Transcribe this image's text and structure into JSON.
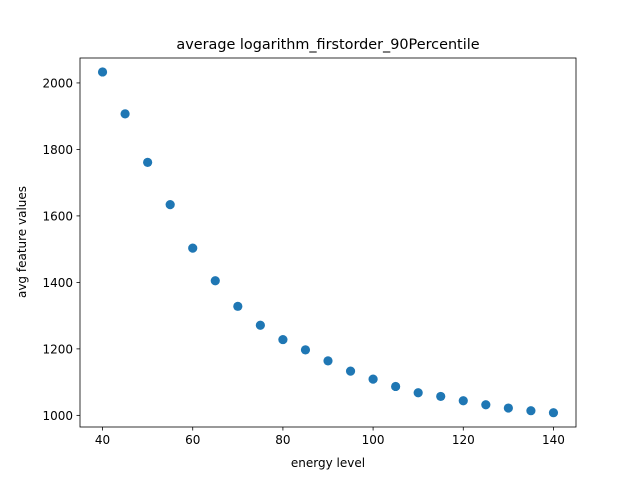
{
  "chart_data": {
    "type": "scatter",
    "title": "average logarithm_firstorder_90Percentile",
    "xlabel": "energy level",
    "ylabel": "avg feature values",
    "xlim": [
      35,
      145
    ],
    "ylim": [
      965,
      2075
    ],
    "xticks": [
      40,
      60,
      80,
      100,
      120,
      140
    ],
    "yticks": [
      1000,
      1200,
      1400,
      1600,
      1800,
      2000
    ],
    "grid": false,
    "marker_color": "#1f77b4",
    "points": [
      {
        "x": 40,
        "y": 2033
      },
      {
        "x": 45,
        "y": 1907
      },
      {
        "x": 50,
        "y": 1761
      },
      {
        "x": 55,
        "y": 1634
      },
      {
        "x": 60,
        "y": 1503
      },
      {
        "x": 65,
        "y": 1405
      },
      {
        "x": 70,
        "y": 1328
      },
      {
        "x": 75,
        "y": 1271
      },
      {
        "x": 80,
        "y": 1228
      },
      {
        "x": 85,
        "y": 1197
      },
      {
        "x": 90,
        "y": 1164
      },
      {
        "x": 95,
        "y": 1133
      },
      {
        "x": 100,
        "y": 1109
      },
      {
        "x": 105,
        "y": 1087
      },
      {
        "x": 110,
        "y": 1068
      },
      {
        "x": 115,
        "y": 1057
      },
      {
        "x": 120,
        "y": 1044
      },
      {
        "x": 125,
        "y": 1032
      },
      {
        "x": 130,
        "y": 1022
      },
      {
        "x": 135,
        "y": 1014
      },
      {
        "x": 140,
        "y": 1008
      }
    ]
  }
}
